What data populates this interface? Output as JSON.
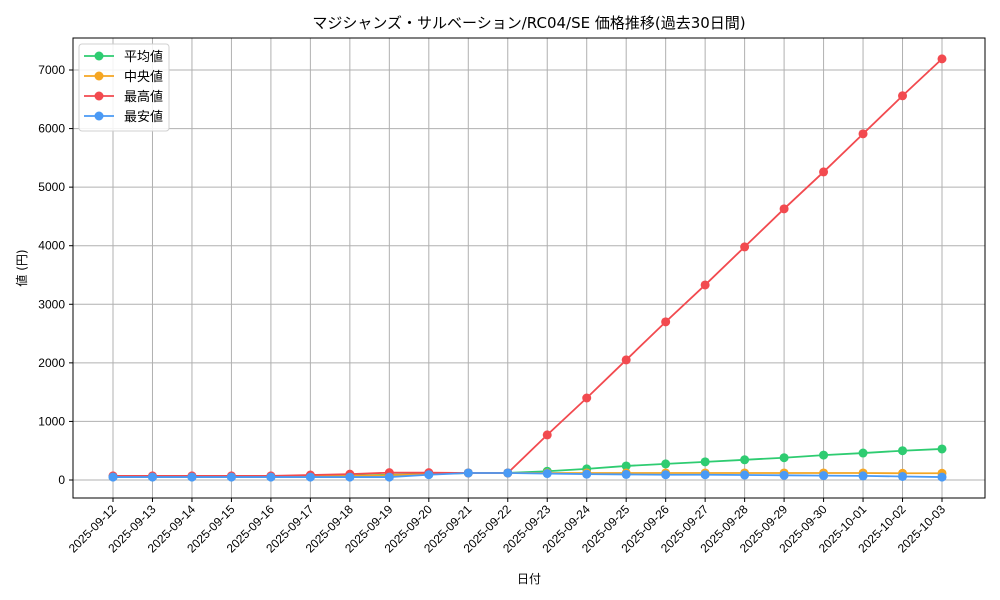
{
  "chart_data": {
    "type": "line",
    "title": "マジシャンズ・サルベーション/RC04/SE 価格推移(過去30日間)",
    "xlabel": "日付",
    "ylabel": "値 (円)",
    "ylim": [
      -300,
      7550
    ],
    "yticks": [
      0,
      1000,
      2000,
      3000,
      4000,
      5000,
      6000,
      7000
    ],
    "grid": true,
    "legend_position": "upper left",
    "x": [
      "2025-09-12",
      "2025-09-13",
      "2025-09-14",
      "2025-09-15",
      "2025-09-16",
      "2025-09-17",
      "2025-09-18",
      "2025-09-19",
      "2025-09-20",
      "2025-09-21",
      "2025-09-22",
      "2025-09-23",
      "2025-09-24",
      "2025-09-25",
      "2025-09-26",
      "2025-09-27",
      "2025-09-28",
      "2025-09-29",
      "2025-09-30",
      "2025-10-01",
      "2025-10-02",
      "2025-10-03"
    ],
    "series": [
      {
        "name": "平均値",
        "color": "#2ecc71",
        "values": [
          60,
          60,
          60,
          60,
          60,
          65,
          75,
          90,
          100,
          120,
          120,
          150,
          190,
          240,
          275,
          310,
          345,
          380,
          425,
          460,
          500,
          530
        ]
      },
      {
        "name": "中央値",
        "color": "#f5a623",
        "values": [
          55,
          55,
          55,
          55,
          55,
          60,
          70,
          80,
          100,
          120,
          120,
          120,
          120,
          120,
          120,
          120,
          120,
          120,
          120,
          120,
          115,
          115
        ]
      },
      {
        "name": "最高値",
        "color": "#f24a4f",
        "values": [
          70,
          70,
          70,
          70,
          70,
          85,
          100,
          125,
          125,
          120,
          120,
          770,
          1400,
          2050,
          2700,
          3330,
          3980,
          4630,
          5260,
          5910,
          6560,
          7190
        ]
      },
      {
        "name": "最安値",
        "color": "#4a9af5",
        "values": [
          50,
          50,
          50,
          50,
          50,
          50,
          50,
          50,
          90,
          120,
          120,
          110,
          100,
          95,
          90,
          90,
          85,
          80,
          75,
          70,
          60,
          50
        ]
      }
    ]
  }
}
